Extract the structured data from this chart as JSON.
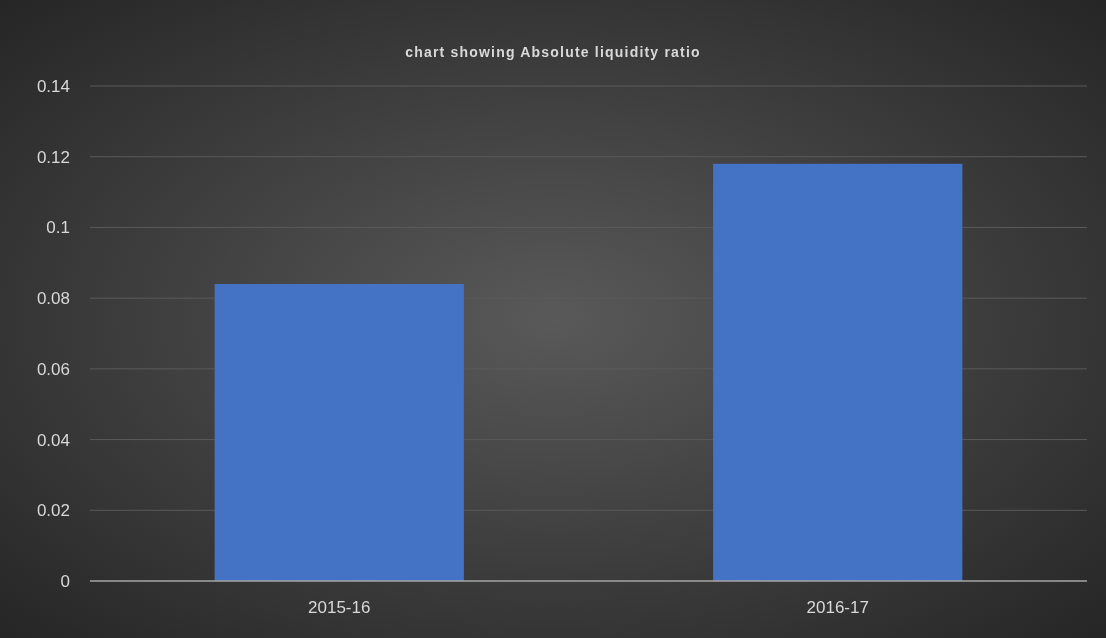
{
  "chart_data": {
    "type": "bar",
    "title": "chart showing Absolute liquidity ratio",
    "categories": [
      "2015-16",
      "2016-17"
    ],
    "values": [
      0.084,
      0.118
    ],
    "color": "#4472c4",
    "ylim": [
      0,
      0.14
    ],
    "yticks": [
      0,
      0.02,
      0.04,
      0.06,
      0.08,
      0.1,
      0.12,
      0.14
    ],
    "grid": true
  }
}
